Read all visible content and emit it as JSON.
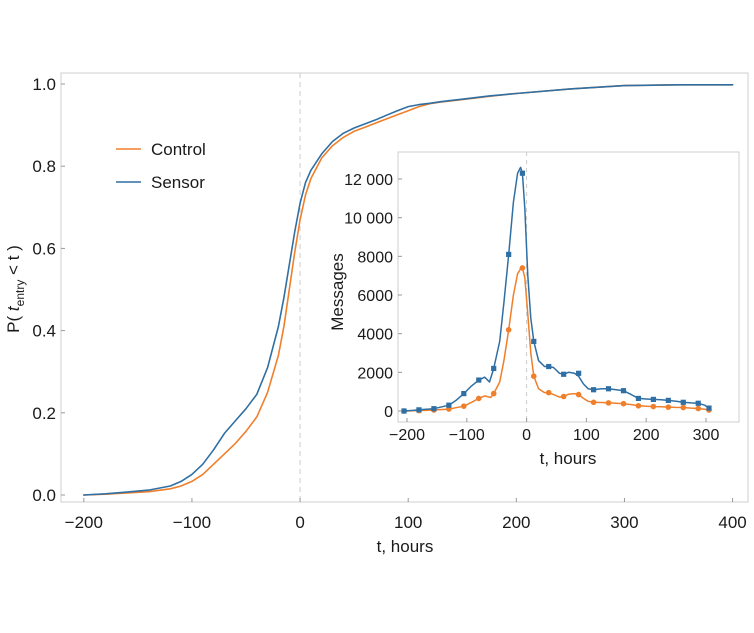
{
  "chart_data": [
    {
      "id": "main",
      "type": "line",
      "title": "",
      "xlabel": "t, hours",
      "ylabel_prefix": "P( ",
      "ylabel_var": "t",
      "ylabel_sub": "entry",
      "ylabel_suffix": " < t )",
      "xlim": [
        -210,
        405
      ],
      "ylim": [
        -0.02,
        1.03
      ],
      "xticks": [
        -200,
        -100,
        0,
        100,
        200,
        300,
        400
      ],
      "xtick_labels": [
        "−200",
        "−100",
        "0",
        "100",
        "200",
        "300",
        "400"
      ],
      "yticks": [
        0.0,
        0.2,
        0.4,
        0.6,
        0.8,
        1.0
      ],
      "ytick_labels": [
        "0.0",
        "0.2",
        "0.4",
        "0.6",
        "0.8",
        "1.0"
      ],
      "reference_line_x": 0,
      "legend_position": "upper-left",
      "series": [
        {
          "name": "Control",
          "color": "#f07f2b",
          "x": [
            -200,
            -180,
            -160,
            -140,
            -120,
            -110,
            -100,
            -90,
            -80,
            -70,
            -60,
            -50,
            -40,
            -30,
            -20,
            -15,
            -10,
            -5,
            0,
            5,
            10,
            20,
            30,
            40,
            50,
            60,
            70,
            80,
            90,
            100,
            110,
            120,
            130,
            150,
            175,
            200,
            250,
            300,
            350,
            400
          ],
          "y": [
            0.0,
            0.002,
            0.005,
            0.008,
            0.015,
            0.022,
            0.033,
            0.05,
            0.075,
            0.1,
            0.125,
            0.155,
            0.19,
            0.25,
            0.34,
            0.41,
            0.5,
            0.59,
            0.67,
            0.73,
            0.77,
            0.82,
            0.85,
            0.87,
            0.885,
            0.895,
            0.905,
            0.915,
            0.925,
            0.935,
            0.945,
            0.952,
            0.956,
            0.962,
            0.97,
            0.977,
            0.988,
            0.996,
            0.998,
            0.998
          ]
        },
        {
          "name": "Sensor",
          "color": "#2f6fa3",
          "x": [
            -200,
            -180,
            -160,
            -140,
            -120,
            -110,
            -100,
            -90,
            -80,
            -70,
            -60,
            -50,
            -40,
            -30,
            -20,
            -15,
            -10,
            -5,
            0,
            5,
            10,
            20,
            30,
            40,
            50,
            60,
            70,
            80,
            90,
            100,
            110,
            120,
            130,
            150,
            175,
            200,
            250,
            300,
            350,
            400
          ],
          "y": [
            0.0,
            0.003,
            0.007,
            0.012,
            0.022,
            0.033,
            0.05,
            0.075,
            0.11,
            0.15,
            0.18,
            0.21,
            0.245,
            0.31,
            0.41,
            0.48,
            0.56,
            0.64,
            0.71,
            0.76,
            0.79,
            0.83,
            0.86,
            0.88,
            0.893,
            0.903,
            0.913,
            0.924,
            0.935,
            0.945,
            0.95,
            0.953,
            0.957,
            0.963,
            0.971,
            0.977,
            0.988,
            0.996,
            0.998,
            0.998
          ]
        }
      ]
    },
    {
      "id": "inset",
      "type": "line",
      "title": "",
      "xlabel": "t, hours",
      "ylabel": "Messages",
      "xlim": [
        -205,
        365
      ],
      "ylim": [
        -200,
        12800
      ],
      "xticks": [
        -200,
        -100,
        0,
        100,
        200,
        300
      ],
      "xtick_labels": [
        "−200",
        "−100",
        "0",
        "100",
        "200",
        "300"
      ],
      "yticks": [
        0,
        2000,
        4000,
        6000,
        8000,
        10000,
        12000
      ],
      "ytick_labels": [
        "0",
        "2000",
        "4000",
        "6000",
        "8000",
        "10 000",
        "12 000"
      ],
      "reference_line_x": 0,
      "series": [
        {
          "name": "Control",
          "color": "#f07f2b",
          "marker": "circle",
          "x": [
            -205,
            -180,
            -155,
            -130,
            -105,
            -80,
            -55,
            -30,
            -7,
            12,
            37,
            62,
            87,
            112,
            137,
            162,
            187,
            212,
            237,
            262,
            287,
            305
          ],
          "y": [
            0,
            20,
            50,
            100,
            250,
            650,
            900,
            4200,
            7400,
            1800,
            950,
            750,
            850,
            450,
            420,
            380,
            270,
            230,
            200,
            180,
            130,
            50
          ],
          "curve_x": [
            -205,
            -190,
            -180,
            -155,
            -130,
            -118,
            -105,
            -92,
            -80,
            -70,
            -60,
            -55,
            -45,
            -38,
            -30,
            -22,
            -15,
            -10,
            -7,
            -3,
            2,
            7,
            12,
            20,
            30,
            37,
            45,
            55,
            62,
            70,
            80,
            87,
            95,
            103,
            112,
            125,
            137,
            150,
            162,
            175,
            187,
            200,
            212,
            225,
            237,
            250,
            262,
            275,
            287,
            298,
            305
          ],
          "curve_y": [
            0,
            10,
            20,
            50,
            100,
            170,
            250,
            450,
            650,
            780,
            700,
            900,
            1500,
            2600,
            4200,
            6000,
            7100,
            7350,
            7400,
            6900,
            5000,
            3000,
            1800,
            1150,
            950,
            950,
            850,
            720,
            750,
            870,
            900,
            850,
            650,
            500,
            450,
            440,
            420,
            400,
            380,
            330,
            270,
            250,
            230,
            215,
            200,
            185,
            180,
            150,
            130,
            90,
            50
          ]
        },
        {
          "name": "Sensor",
          "color": "#2f6fa3",
          "marker": "square",
          "x": [
            -205,
            -180,
            -155,
            -130,
            -105,
            -80,
            -55,
            -30,
            -7,
            12,
            37,
            62,
            87,
            112,
            137,
            162,
            187,
            212,
            237,
            262,
            287,
            305
          ],
          "y": [
            0,
            60,
            120,
            300,
            900,
            1600,
            2200,
            8100,
            12300,
            3600,
            2300,
            1900,
            1950,
            1100,
            1150,
            1050,
            650,
            600,
            550,
            450,
            400,
            150
          ],
          "curve_x": [
            -205,
            -190,
            -180,
            -155,
            -130,
            -118,
            -105,
            -92,
            -80,
            -70,
            -62,
            -55,
            -45,
            -38,
            -30,
            -22,
            -15,
            -10,
            -7,
            -3,
            2,
            7,
            12,
            20,
            30,
            37,
            45,
            55,
            62,
            70,
            80,
            87,
            95,
            103,
            112,
            125,
            137,
            150,
            162,
            175,
            187,
            200,
            212,
            225,
            237,
            250,
            262,
            275,
            287,
            298,
            305
          ],
          "curve_y": [
            0,
            30,
            60,
            120,
            300,
            550,
            900,
            1300,
            1600,
            1750,
            1500,
            2200,
            3600,
            5600,
            8100,
            10800,
            12300,
            12600,
            12300,
            10500,
            7000,
            4800,
            3600,
            2600,
            2300,
            2300,
            2250,
            1950,
            1900,
            2000,
            1950,
            1800,
            1400,
            1150,
            1100,
            1150,
            1150,
            1100,
            1050,
            850,
            650,
            620,
            600,
            580,
            550,
            500,
            450,
            420,
            400,
            300,
            150
          ]
        }
      ]
    }
  ]
}
